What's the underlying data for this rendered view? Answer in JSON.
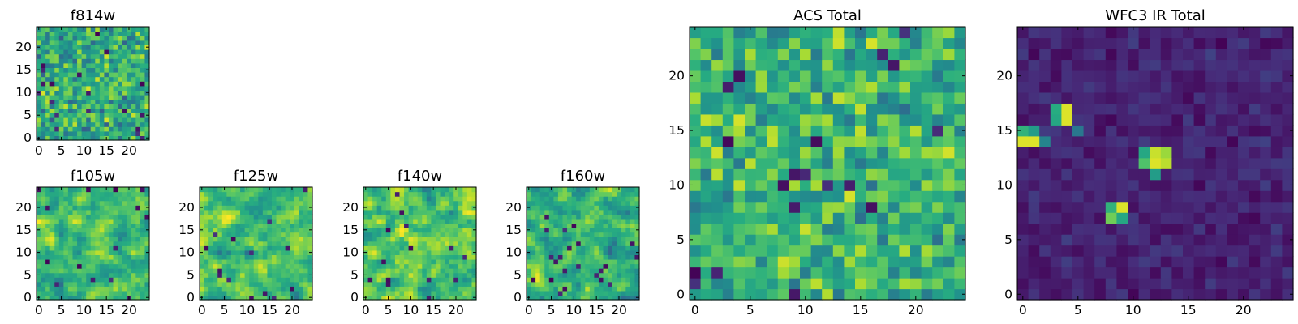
{
  "figure": {
    "type": "heatmap-panels"
  },
  "chart_data": [
    {
      "type": "heatmap",
      "title": "f814w",
      "grid": [
        25,
        25
      ],
      "xlim": [
        -0.5,
        24.5
      ],
      "ylim": [
        -0.5,
        24.5
      ],
      "xticks": [
        0,
        5,
        10,
        15,
        20
      ],
      "yticks": [
        0,
        5,
        10,
        15,
        20
      ],
      "colormap": "viridis",
      "value_range": [
        0,
        1
      ],
      "seed": 11,
      "texture": "noise",
      "mean": 0.62,
      "spread": 0.34,
      "hot_spots": []
    },
    {
      "type": "heatmap",
      "title": "f105w",
      "grid": [
        25,
        25
      ],
      "xlim": [
        -0.5,
        24.5
      ],
      "ylim": [
        -0.5,
        24.5
      ],
      "xticks": [
        0,
        5,
        10,
        15,
        20
      ],
      "yticks": [
        0,
        5,
        10,
        15,
        20
      ],
      "colormap": "viridis",
      "value_range": [
        0,
        1
      ],
      "seed": 23,
      "texture": "smooth",
      "mean": 0.68,
      "spread": 0.32,
      "hot_spots": []
    },
    {
      "type": "heatmap",
      "title": "f125w",
      "grid": [
        25,
        25
      ],
      "xlim": [
        -0.5,
        24.5
      ],
      "ylim": [
        -0.5,
        24.5
      ],
      "xticks": [
        0,
        5,
        10,
        15,
        20
      ],
      "yticks": [
        0,
        5,
        10,
        15,
        20
      ],
      "colormap": "viridis",
      "value_range": [
        0,
        1
      ],
      "seed": 37,
      "texture": "smooth",
      "mean": 0.7,
      "spread": 0.32,
      "hot_spots": []
    },
    {
      "type": "heatmap",
      "title": "f140w",
      "grid": [
        25,
        25
      ],
      "xlim": [
        -0.5,
        24.5
      ],
      "ylim": [
        -0.5,
        24.5
      ],
      "xticks": [
        0,
        5,
        10,
        15,
        20
      ],
      "yticks": [
        0,
        5,
        10,
        15,
        20
      ],
      "colormap": "viridis",
      "value_range": [
        0,
        1
      ],
      "seed": 41,
      "texture": "smooth",
      "mean": 0.72,
      "spread": 0.34,
      "hot_spots": []
    },
    {
      "type": "heatmap",
      "title": "f160w",
      "grid": [
        25,
        25
      ],
      "xlim": [
        -0.5,
        24.5
      ],
      "ylim": [
        -0.5,
        24.5
      ],
      "xticks": [
        0,
        5,
        10,
        15,
        20
      ],
      "yticks": [
        0,
        5,
        10,
        15,
        20
      ],
      "colormap": "viridis",
      "value_range": [
        0,
        1
      ],
      "seed": 53,
      "texture": "smooth",
      "mean": 0.66,
      "spread": 0.32,
      "hot_spots": []
    },
    {
      "type": "heatmap",
      "title": "ACS Total",
      "grid": [
        25,
        25
      ],
      "xlim": [
        -0.5,
        24.5
      ],
      "ylim": [
        -0.5,
        24.5
      ],
      "xticks": [
        0,
        5,
        10,
        15,
        20
      ],
      "yticks": [
        0,
        5,
        10,
        15,
        20
      ],
      "colormap": "viridis",
      "value_range": [
        0,
        1
      ],
      "seed": 67,
      "texture": "noise",
      "mean": 0.66,
      "spread": 0.3,
      "hot_spots": []
    },
    {
      "type": "heatmap",
      "title": "WFC3 IR Total",
      "grid": [
        25,
        25
      ],
      "xlim": [
        -0.5,
        24.5
      ],
      "ylim": [
        -0.5,
        24.5
      ],
      "xticks": [
        0,
        5,
        10,
        15,
        20
      ],
      "yticks": [
        0,
        5,
        10,
        15,
        20
      ],
      "colormap": "viridis",
      "value_range": [
        0,
        1
      ],
      "seed": 79,
      "texture": "noise",
      "mean": 0.1,
      "spread": 0.1,
      "hot_spots": [
        {
          "x": 0,
          "y": 14,
          "value": 0.95
        },
        {
          "x": 1,
          "y": 14,
          "value": 0.95
        },
        {
          "x": 0,
          "y": 15,
          "value": 0.65
        },
        {
          "x": 1,
          "y": 15,
          "value": 0.55
        },
        {
          "x": 3,
          "y": 16,
          "value": 0.6
        },
        {
          "x": 4,
          "y": 16,
          "value": 0.95
        },
        {
          "x": 3,
          "y": 17,
          "value": 0.62
        },
        {
          "x": 4,
          "y": 17,
          "value": 0.95
        },
        {
          "x": 2,
          "y": 14,
          "value": 0.45
        },
        {
          "x": 11,
          "y": 12,
          "value": 0.72
        },
        {
          "x": 12,
          "y": 12,
          "value": 0.95
        },
        {
          "x": 13,
          "y": 12,
          "value": 0.9
        },
        {
          "x": 11,
          "y": 13,
          "value": 0.6
        },
        {
          "x": 12,
          "y": 13,
          "value": 0.92
        },
        {
          "x": 13,
          "y": 13,
          "value": 0.85
        },
        {
          "x": 12,
          "y": 11,
          "value": 0.55
        },
        {
          "x": 8,
          "y": 7,
          "value": 0.78
        },
        {
          "x": 9,
          "y": 7,
          "value": 0.6
        },
        {
          "x": 8,
          "y": 8,
          "value": 0.65
        },
        {
          "x": 9,
          "y": 8,
          "value": 0.95
        },
        {
          "x": 5,
          "y": 15,
          "value": 0.4
        }
      ]
    }
  ]
}
